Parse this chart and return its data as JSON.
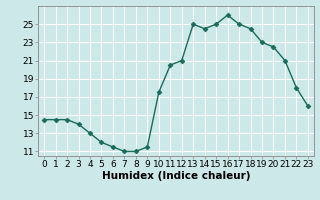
{
  "x": [
    0,
    1,
    2,
    3,
    4,
    5,
    6,
    7,
    8,
    9,
    10,
    11,
    12,
    13,
    14,
    15,
    16,
    17,
    18,
    19,
    20,
    21,
    22,
    23
  ],
  "y": [
    14.5,
    14.5,
    14.5,
    14.0,
    13.0,
    12.0,
    11.5,
    11.0,
    11.0,
    11.5,
    17.5,
    20.5,
    21.0,
    25.0,
    24.5,
    25.0,
    26.0,
    25.0,
    24.5,
    23.0,
    22.5,
    21.0,
    18.0,
    16.0
  ],
  "line_color": "#1a6b5a",
  "marker": "D",
  "marker_size": 2.5,
  "bg_color": "#cce8e8",
  "grid_color": "#ffffff",
  "xlabel": "Humidex (Indice chaleur)",
  "ylim": [
    10.5,
    27
  ],
  "xlim": [
    -0.5,
    23.5
  ],
  "yticks": [
    11,
    13,
    15,
    17,
    19,
    21,
    23,
    25
  ],
  "xtick_labels": [
    "0",
    "1",
    "2",
    "3",
    "4",
    "5",
    "6",
    "7",
    "8",
    "9",
    "10",
    "11",
    "12",
    "13",
    "14",
    "15",
    "16",
    "17",
    "18",
    "19",
    "20",
    "21",
    "22",
    "23"
  ],
  "tick_fontsize": 6.5,
  "xlabel_fontsize": 7.5,
  "spine_color": "#888888",
  "linewidth": 1.0
}
